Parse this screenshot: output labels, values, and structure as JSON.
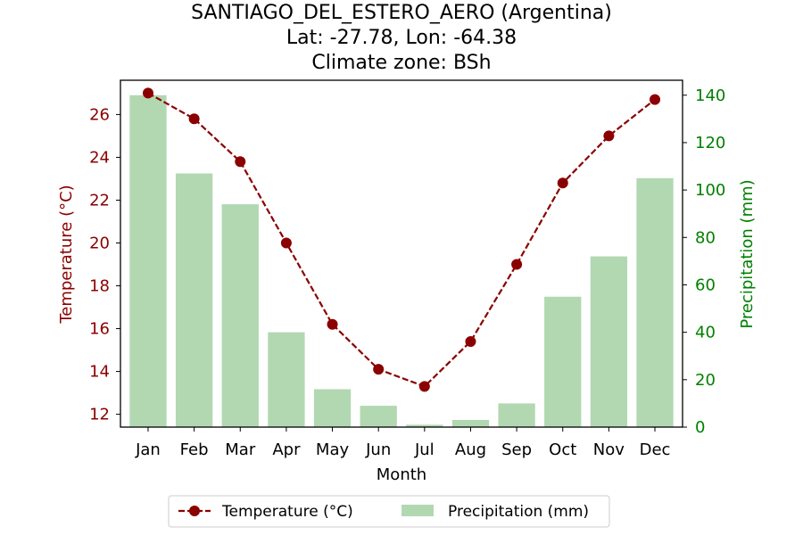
{
  "chart_data": {
    "type": "bar+line",
    "title_lines": [
      "SANTIAGO_DEL_ESTERO_AERO (Argentina)",
      "Lat: -27.78, Lon: -64.38",
      "Climate zone: BSh"
    ],
    "xlabel": "Month",
    "ylabel_left": "Temperature (°C)",
    "ylabel_right": "Precipitation (mm)",
    "categories": [
      "Jan",
      "Feb",
      "Mar",
      "Apr",
      "May",
      "Jun",
      "Jul",
      "Aug",
      "Sep",
      "Oct",
      "Nov",
      "Dec"
    ],
    "series": [
      {
        "name": "Temperature (°C)",
        "type": "line",
        "axis": "left",
        "values": [
          27.0,
          25.8,
          23.8,
          20.0,
          16.2,
          14.1,
          13.3,
          15.4,
          19.0,
          22.8,
          25.0,
          26.7
        ],
        "color": "#8b0000",
        "marker": "circle",
        "linestyle": "dashed"
      },
      {
        "name": "Precipitation (mm)",
        "type": "bar",
        "axis": "right",
        "values": [
          140,
          107,
          94,
          40,
          16,
          9,
          1,
          3,
          10,
          55,
          72,
          105
        ],
        "color": "#b2d8b2"
      }
    ],
    "y_left": {
      "min": 11.4,
      "max": 27.6,
      "ticks": [
        12,
        14,
        16,
        18,
        20,
        22,
        24,
        26
      ],
      "color": "#8b0000"
    },
    "y_right": {
      "min": 0,
      "max": 146.3,
      "ticks": [
        0,
        20,
        40,
        60,
        80,
        100,
        120,
        140
      ],
      "color": "#008000"
    },
    "grid": false,
    "legend_position": "bottom-center"
  }
}
